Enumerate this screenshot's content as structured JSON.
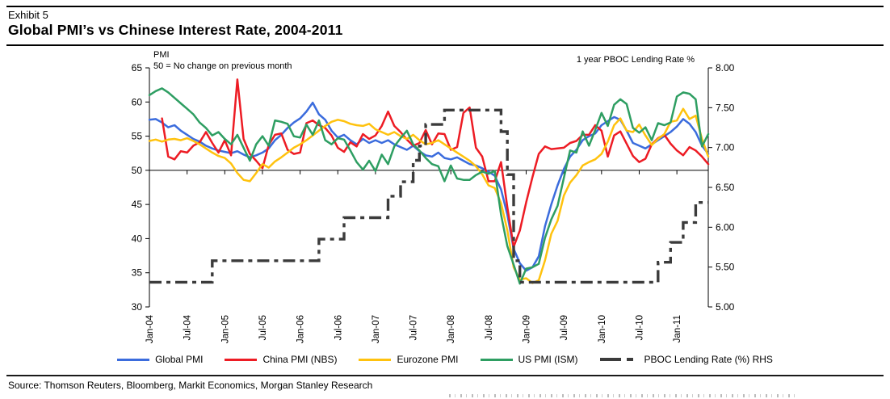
{
  "header": {
    "exhibit": "Exhibit 5",
    "title": "Global PMI’s vs Chinese Interest Rate, 2004-2011"
  },
  "footer": {
    "source": "Source: Thomson Reuters, Bloomberg, Markit Economics, Morgan Stanley Research"
  },
  "chart_data": {
    "type": "line",
    "title": "Global PMI’s vs Chinese Interest Rate, 2004-2011",
    "grid": false,
    "legend_position": "bottom",
    "left_axis": {
      "label": "PMI",
      "sublabel": "50 = No change on previous month",
      "min": 30,
      "max": 65,
      "baseline": 50,
      "tick_labels": [
        "65",
        "60",
        "55",
        "50",
        "45",
        "40",
        "35",
        "30"
      ]
    },
    "right_axis": {
      "label": "1 year PBOC Lending Rate %",
      "min": 5.0,
      "max": 8.0,
      "tick_labels": [
        "8.00",
        "7.50",
        "7.00",
        "6.50",
        "6.00",
        "5.50",
        "5.00"
      ]
    },
    "x_axis": {
      "monthly_start": "Jan-04",
      "monthly_end": "Jun-11",
      "months_count": 90,
      "tick_every_months": 6,
      "tick_labels": [
        "Jan-04",
        "Jul-04",
        "Jan-05",
        "Jul-05",
        "Jan-06",
        "Jul-06",
        "Jan-07",
        "Jul-07",
        "Jan-08",
        "Jul-08",
        "Jan-09",
        "Jul-09",
        "Jan-10",
        "Jul-10",
        "Jan-11"
      ]
    },
    "series": [
      {
        "name": "Global PMI",
        "color": "#3B6CDD",
        "axis": "left",
        "style": "solid",
        "values": [
          57.4,
          57.5,
          57.0,
          56.3,
          56.6,
          55.8,
          55.2,
          54.6,
          54.2,
          53.6,
          53.2,
          52.9,
          52.7,
          52.5,
          52.8,
          52.3,
          51.9,
          52.2,
          52.6,
          53.2,
          54.4,
          55.2,
          56.2,
          57.0,
          57.6,
          58.6,
          59.9,
          58.2,
          57.4,
          55.8,
          54.8,
          55.2,
          54.4,
          53.8,
          54.6,
          54.0,
          54.4,
          54.0,
          54.4,
          53.8,
          53.4,
          53.0,
          53.6,
          52.8,
          52.2,
          52.0,
          52.6,
          51.8,
          51.6,
          51.9,
          51.4,
          50.9,
          50.7,
          50.3,
          49.8,
          49.2,
          47.2,
          43.5,
          38.5,
          36.4,
          35.3,
          35.8,
          37.4,
          41.8,
          45.0,
          47.8,
          50.2,
          52.0,
          53.0,
          54.4,
          55.0,
          55.4,
          56.6,
          57.2,
          57.8,
          57.4,
          55.8,
          54.0,
          53.6,
          53.2,
          53.8,
          54.4,
          55.0,
          55.6,
          56.4,
          57.5,
          56.8,
          55.6,
          53.6,
          52.4
        ]
      },
      {
        "name": "China PMI (NBS)",
        "color": "#ED1C24",
        "axis": "left",
        "style": "solid",
        "values": [
          null,
          null,
          57.6,
          52.0,
          51.6,
          52.8,
          52.6,
          53.6,
          54.1,
          55.6,
          54.0,
          52.6,
          54.4,
          52.2,
          63.3,
          54.6,
          52.4,
          51.4,
          50.3,
          53.7,
          55.2,
          55.4,
          53.0,
          52.4,
          52.6,
          56.9,
          57.3,
          56.6,
          56.2,
          55.1,
          53.3,
          52.7,
          54.1,
          53.5,
          55.3,
          54.6,
          55.1,
          56.5,
          58.6,
          56.5,
          55.6,
          54.5,
          53.6,
          54.0,
          55.9,
          53.8,
          55.4,
          55.3,
          53.0,
          53.4,
          58.4,
          59.2,
          53.3,
          52.0,
          48.4,
          48.4,
          51.2,
          44.6,
          38.8,
          41.2,
          45.3,
          49.0,
          52.4,
          53.5,
          53.1,
          53.2,
          53.3,
          54.0,
          54.3,
          55.2,
          55.2,
          56.6,
          55.8,
          52.0,
          55.1,
          55.7,
          53.9,
          52.1,
          51.2,
          51.7,
          53.8,
          54.7,
          55.2,
          53.9,
          52.9,
          52.2,
          53.4,
          52.9,
          52.0,
          50.9
        ]
      },
      {
        "name": "Eurozone PMI",
        "color": "#FFC20E",
        "axis": "left",
        "style": "solid",
        "values": [
          54.3,
          54.5,
          54.2,
          54.5,
          54.6,
          54.4,
          54.7,
          54.3,
          53.8,
          53.2,
          52.6,
          52.1,
          51.8,
          51.0,
          49.6,
          48.6,
          48.4,
          49.6,
          50.9,
          50.4,
          51.3,
          51.9,
          52.6,
          53.3,
          53.8,
          54.4,
          55.1,
          55.8,
          56.5,
          57.1,
          57.4,
          57.2,
          56.8,
          56.6,
          56.5,
          56.8,
          56.0,
          55.6,
          55.2,
          55.6,
          55.0,
          54.6,
          55.2,
          54.4,
          53.8,
          54.0,
          54.4,
          53.8,
          53.2,
          52.6,
          52.0,
          51.4,
          50.6,
          49.4,
          47.8,
          47.4,
          45.2,
          41.2,
          35.8,
          34.0,
          34.2,
          33.5,
          33.9,
          36.8,
          40.7,
          42.6,
          46.3,
          48.2,
          49.3,
          50.7,
          51.2,
          51.6,
          52.4,
          54.2,
          56.6,
          57.6,
          55.8,
          55.6,
          56.7,
          55.1,
          53.7,
          54.6,
          55.3,
          57.1,
          57.3,
          59.0,
          57.5,
          58.0,
          54.6,
          52.0
        ]
      },
      {
        "name": "US PMI (ISM)",
        "color": "#2E9E62",
        "axis": "left",
        "style": "solid",
        "values": [
          61.0,
          61.6,
          62.0,
          61.4,
          60.6,
          59.8,
          59.0,
          58.2,
          57.0,
          56.2,
          55.1,
          55.6,
          54.6,
          53.8,
          55.2,
          53.3,
          51.4,
          53.8,
          55.0,
          53.6,
          57.3,
          57.1,
          56.8,
          55.0,
          54.8,
          56.7,
          55.2,
          57.3,
          54.4,
          53.8,
          54.7,
          54.5,
          52.9,
          51.2,
          50.1,
          51.4,
          49.9,
          52.3,
          50.9,
          53.5,
          54.7,
          55.8,
          53.8,
          52.9,
          51.8,
          50.9,
          50.6,
          48.4,
          50.7,
          48.8,
          48.6,
          48.6,
          49.3,
          49.8,
          49.5,
          49.9,
          43.5,
          38.9,
          36.2,
          33.4,
          35.6,
          35.8,
          36.3,
          40.1,
          42.8,
          44.8,
          48.9,
          52.9,
          52.6,
          55.7,
          53.6,
          55.9,
          58.4,
          56.5,
          59.6,
          60.4,
          59.7,
          56.2,
          55.5,
          56.3,
          54.4,
          56.9,
          56.6,
          57.0,
          60.8,
          61.4,
          61.2,
          60.4,
          53.5,
          55.3
        ]
      },
      {
        "name": "PBOC Lending Rate (%) RHS",
        "color": "#3B3B3B",
        "axis": "right",
        "style": "dashdot",
        "step": true,
        "values": [
          5.31,
          5.31,
          5.31,
          5.31,
          5.31,
          5.31,
          5.31,
          5.31,
          5.31,
          5.31,
          5.58,
          5.58,
          5.58,
          5.58,
          5.58,
          5.58,
          5.58,
          5.58,
          5.58,
          5.58,
          5.58,
          5.58,
          5.58,
          5.58,
          5.58,
          5.58,
          5.58,
          5.85,
          5.85,
          5.85,
          5.85,
          6.12,
          6.12,
          6.12,
          6.12,
          6.12,
          6.12,
          6.12,
          6.39,
          6.39,
          6.57,
          6.57,
          6.84,
          7.02,
          7.29,
          7.29,
          7.29,
          7.47,
          7.47,
          7.47,
          7.47,
          7.47,
          7.47,
          7.47,
          7.47,
          7.47,
          7.2,
          6.66,
          5.58,
          5.31,
          5.31,
          5.31,
          5.31,
          5.31,
          5.31,
          5.31,
          5.31,
          5.31,
          5.31,
          5.31,
          5.31,
          5.31,
          5.31,
          5.31,
          5.31,
          5.31,
          5.31,
          5.31,
          5.31,
          5.31,
          5.31,
          5.56,
          5.56,
          5.81,
          5.81,
          6.06,
          6.06,
          6.31,
          6.31,
          6.31
        ]
      }
    ]
  }
}
